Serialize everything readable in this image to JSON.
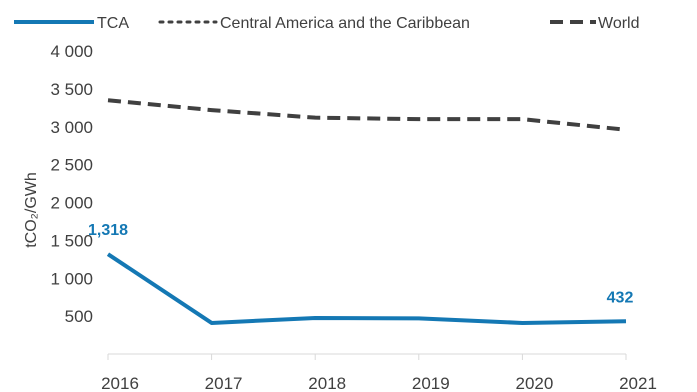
{
  "chart_data": {
    "type": "line",
    "x": [
      2016,
      2017,
      2018,
      2019,
      2020,
      2021
    ],
    "x_tick_labels": [
      "2016",
      "2017",
      "2018",
      "2019",
      "2020",
      "2021"
    ],
    "y_tick_labels": [
      "4 000",
      "3 500",
      "3 000",
      "2 500",
      "2 000",
      "1 500",
      "1 000",
      "500"
    ],
    "ylabel": "tCO₂/GWh",
    "ylim": [
      0,
      4000
    ],
    "grid": false,
    "legend_position": "top",
    "series": [
      {
        "name": "TCA",
        "values": [
          1318,
          410,
          475,
          470,
          410,
          432
        ],
        "color": "#1478b4",
        "style": "solid"
      },
      {
        "name": "Central America and the Caribbean",
        "values": [
          null,
          null,
          null,
          null,
          null,
          null
        ],
        "color": "#404040",
        "style": "dotted"
      },
      {
        "name": "World",
        "values": [
          3350,
          3220,
          3120,
          3100,
          3100,
          2960
        ],
        "color": "#404040",
        "style": "dashed"
      }
    ],
    "data_labels": [
      {
        "series": "TCA",
        "x": 2016,
        "text": "1,318"
      },
      {
        "series": "TCA",
        "x": 2021,
        "text": "432"
      }
    ]
  }
}
